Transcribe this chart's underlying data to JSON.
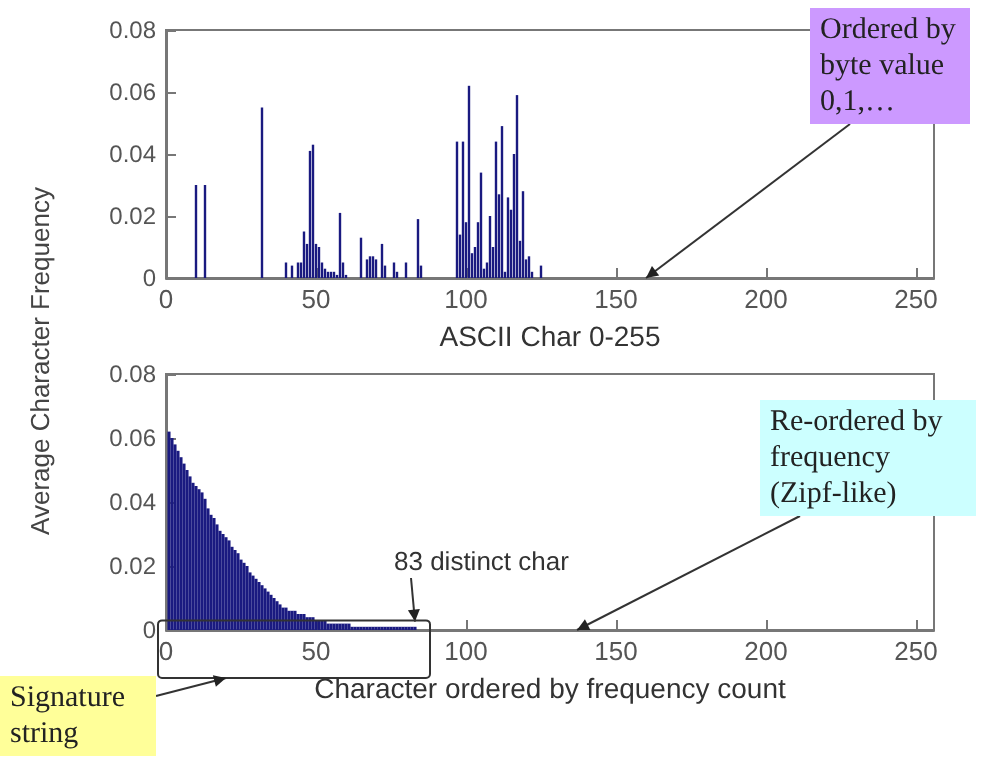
{
  "chart_data": [
    {
      "type": "bar",
      "xlabel": "ASCII Char 0-255",
      "ylabel": "Average Character Frequency",
      "color": "#1a1a80",
      "x": [
        10,
        13,
        32,
        40,
        42,
        44,
        45,
        46,
        47,
        48,
        49,
        50,
        51,
        52,
        53,
        54,
        55,
        56,
        57,
        58,
        59,
        60,
        65,
        67,
        68,
        69,
        70,
        72,
        73,
        76,
        77,
        80,
        84,
        85,
        97,
        98,
        99,
        100,
        101,
        102,
        103,
        104,
        105,
        106,
        107,
        108,
        109,
        110,
        111,
        112,
        113,
        114,
        115,
        116,
        117,
        118,
        119,
        120,
        121,
        122,
        125
      ],
      "values": [
        0.03,
        0.03,
        0.055,
        0.005,
        0.004,
        0.005,
        0.005,
        0.015,
        0.011,
        0.041,
        0.043,
        0.011,
        0.01,
        0.005,
        0.003,
        0.002,
        0.002,
        0.002,
        0.001,
        0.021,
        0.005,
        0.001,
        0.013,
        0.006,
        0.007,
        0.007,
        0.006,
        0.011,
        0.004,
        0.005,
        0.002,
        0.005,
        0.019,
        0.004,
        0.044,
        0.014,
        0.044,
        0.018,
        0.062,
        0.008,
        0.01,
        0.018,
        0.034,
        0.003,
        0.005,
        0.02,
        0.01,
        0.044,
        0.027,
        0.049,
        0.002,
        0.026,
        0.022,
        0.04,
        0.059,
        0.012,
        0.028,
        0.006,
        0.007,
        0.002,
        0.004
      ],
      "xlim": [
        0,
        256
      ],
      "xticks": [
        0,
        50,
        100,
        150,
        200,
        250
      ],
      "ylim": [
        0,
        0.08
      ],
      "yticks": [
        0,
        0.02,
        0.04,
        0.06,
        0.08
      ],
      "annotations": [
        "Ordered by byte value 0,1,…"
      ]
    },
    {
      "type": "bar",
      "xlabel": "Character ordered by frequency count",
      "color": "#1a1a80",
      "x": [
        1,
        2,
        3,
        4,
        5,
        6,
        7,
        8,
        9,
        10,
        11,
        12,
        13,
        14,
        15,
        16,
        17,
        18,
        19,
        20,
        21,
        22,
        23,
        24,
        25,
        26,
        27,
        28,
        29,
        30,
        31,
        32,
        33,
        34,
        35,
        36,
        37,
        38,
        39,
        40,
        41,
        42,
        43,
        44,
        45,
        46,
        47,
        48,
        49,
        50,
        51,
        52,
        53,
        54,
        55,
        56,
        57,
        58,
        59,
        60,
        61,
        62,
        63,
        64,
        65,
        66,
        67,
        68,
        69,
        70,
        71,
        72,
        73,
        74,
        75,
        76,
        77,
        78,
        79,
        80,
        81,
        82,
        83
      ],
      "values": [
        0.062,
        0.06,
        0.058,
        0.056,
        0.054,
        0.052,
        0.05,
        0.048,
        0.046,
        0.045,
        0.044,
        0.043,
        0.041,
        0.038,
        0.036,
        0.035,
        0.033,
        0.031,
        0.03,
        0.029,
        0.028,
        0.026,
        0.025,
        0.024,
        0.022,
        0.021,
        0.02,
        0.018,
        0.017,
        0.016,
        0.015,
        0.014,
        0.013,
        0.012,
        0.011,
        0.01,
        0.009,
        0.008,
        0.007,
        0.007,
        0.006,
        0.006,
        0.006,
        0.005,
        0.005,
        0.005,
        0.004,
        0.004,
        0.004,
        0.003,
        0.003,
        0.003,
        0.003,
        0.002,
        0.002,
        0.002,
        0.002,
        0.002,
        0.002,
        0.002,
        0.002,
        0.001,
        0.001,
        0.001,
        0.001,
        0.001,
        0.001,
        0.001,
        0.001,
        0.001,
        0.001,
        0.001,
        0.001,
        0.001,
        0.001,
        0.001,
        0.001,
        0.001,
        0.001,
        0.001,
        0.001,
        0.001,
        0.001
      ],
      "xlim": [
        0,
        256
      ],
      "xticks": [
        0,
        50,
        100,
        150,
        200,
        250
      ],
      "ylim": [
        0,
        0.08
      ],
      "yticks": [
        0,
        0.02,
        0.04,
        0.06,
        0.08
      ],
      "annotations": [
        {
          "text": "83 distinct char",
          "x": 83,
          "y": 0.002
        },
        "Re-ordered by frequency (Zipf-like)",
        "Signature string"
      ]
    }
  ]
}
